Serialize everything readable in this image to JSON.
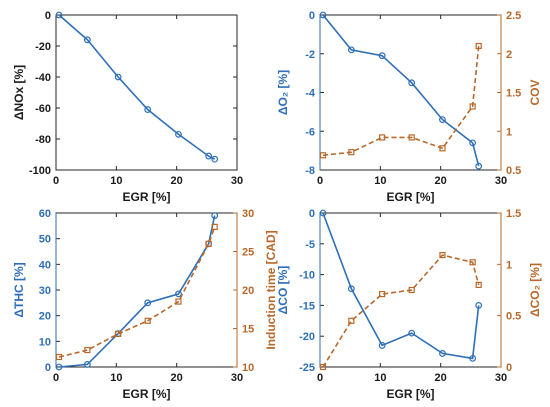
{
  "chart_data": [
    {
      "type": "line",
      "xlabel": "EGR [%]",
      "ylabel": "ΔNOx [%]",
      "xlim": [
        0,
        30
      ],
      "ylim": [
        -100,
        0
      ],
      "xticks": [
        "0",
        "10",
        "20",
        "30"
      ],
      "yticks": [
        "0",
        "-20",
        "-40",
        "-60",
        "-80",
        "-100"
      ],
      "series": [
        {
          "axis": "left",
          "color": "#2e6fb8",
          "marker": "circle",
          "dash": false,
          "x": [
            0.5,
            5.2,
            10.3,
            15.2,
            20.3,
            25.3,
            26.3
          ],
          "y": [
            0,
            -16,
            -40,
            -61,
            -77,
            -91,
            -93
          ]
        }
      ]
    },
    {
      "type": "line",
      "xlabel": "EGR [%]",
      "ylabel": "ΔO₂ [%]",
      "ylabel_right": "COV",
      "xlim": [
        0,
        30
      ],
      "ylim": [
        -8,
        0
      ],
      "ylim_right": [
        0.5,
        2.5
      ],
      "xticks": [
        "0",
        "10",
        "20",
        "30"
      ],
      "yticks": [
        "0",
        "-2",
        "-4",
        "-6",
        "-8"
      ],
      "yticks_right": [
        "0.5",
        "1",
        "1.5",
        "2",
        "2.5"
      ],
      "series": [
        {
          "axis": "left",
          "color": "#2e6fb8",
          "marker": "circle",
          "dash": false,
          "x": [
            0.5,
            5.2,
            10.3,
            15.2,
            20.3,
            25.3,
            26.3
          ],
          "y": [
            0,
            -1.8,
            -2.1,
            -3.5,
            -5.4,
            -6.6,
            -7.8
          ]
        },
        {
          "axis": "right",
          "color": "#b8682a",
          "marker": "square",
          "dash": true,
          "x": [
            0.5,
            5.2,
            10.3,
            15.2,
            20.3,
            25.3,
            26.3
          ],
          "y": [
            0.69,
            0.73,
            0.92,
            0.92,
            0.78,
            1.32,
            2.1
          ]
        }
      ]
    },
    {
      "type": "line",
      "xlabel": "EGR [%]",
      "ylabel": "ΔTHC [%]",
      "ylabel_right": "Induction time [CAD]",
      "xlim": [
        0,
        30
      ],
      "ylim": [
        0,
        60
      ],
      "ylim_right": [
        10,
        30
      ],
      "xticks": [
        "0",
        "10",
        "20",
        "30"
      ],
      "yticks": [
        "0",
        "10",
        "20",
        "30",
        "40",
        "50",
        "60"
      ],
      "yticks_right": [
        "10",
        "15",
        "20",
        "25",
        "30"
      ],
      "series": [
        {
          "axis": "left",
          "color": "#2e6fb8",
          "marker": "circle",
          "dash": false,
          "x": [
            0.5,
            5.2,
            10.3,
            15.2,
            20.3,
            25.3,
            26.3
          ],
          "y": [
            0,
            1,
            13,
            25,
            28.5,
            48,
            59
          ]
        },
        {
          "axis": "right",
          "color": "#b8682a",
          "marker": "square",
          "dash": true,
          "x": [
            0.5,
            5.2,
            10.3,
            15.2,
            20.3,
            25.3,
            26.3
          ],
          "y": [
            11.3,
            12.2,
            14.3,
            16,
            18.5,
            26,
            28.2
          ]
        }
      ]
    },
    {
      "type": "line",
      "xlabel": "EGR [%]",
      "ylabel": "ΔCO [%]",
      "ylabel_right": "ΔCO₂ [%]",
      "xlim": [
        0,
        30
      ],
      "ylim": [
        -25,
        0
      ],
      "ylim_right": [
        0,
        1.5
      ],
      "xticks": [
        "0",
        "10",
        "20",
        "30"
      ],
      "yticks": [
        "0",
        "-5",
        "-10",
        "-15",
        "-20",
        "-25"
      ],
      "yticks_right": [
        "0",
        "0.5",
        "1",
        "1.5"
      ],
      "series": [
        {
          "axis": "left",
          "color": "#2e6fb8",
          "marker": "circle",
          "dash": false,
          "x": [
            0.5,
            5.2,
            10.3,
            15.2,
            20.3,
            25.3,
            26.3
          ],
          "y": [
            0,
            -12.3,
            -21.5,
            -19.5,
            -22.8,
            -23.6,
            -15
          ]
        },
        {
          "axis": "right",
          "color": "#b8682a",
          "marker": "square",
          "dash": true,
          "x": [
            0.5,
            5.2,
            10.3,
            15.2,
            20.3,
            25.3,
            26.3
          ],
          "y": [
            0,
            0.45,
            0.71,
            0.75,
            1.09,
            1.02,
            0.8
          ]
        }
      ]
    }
  ]
}
